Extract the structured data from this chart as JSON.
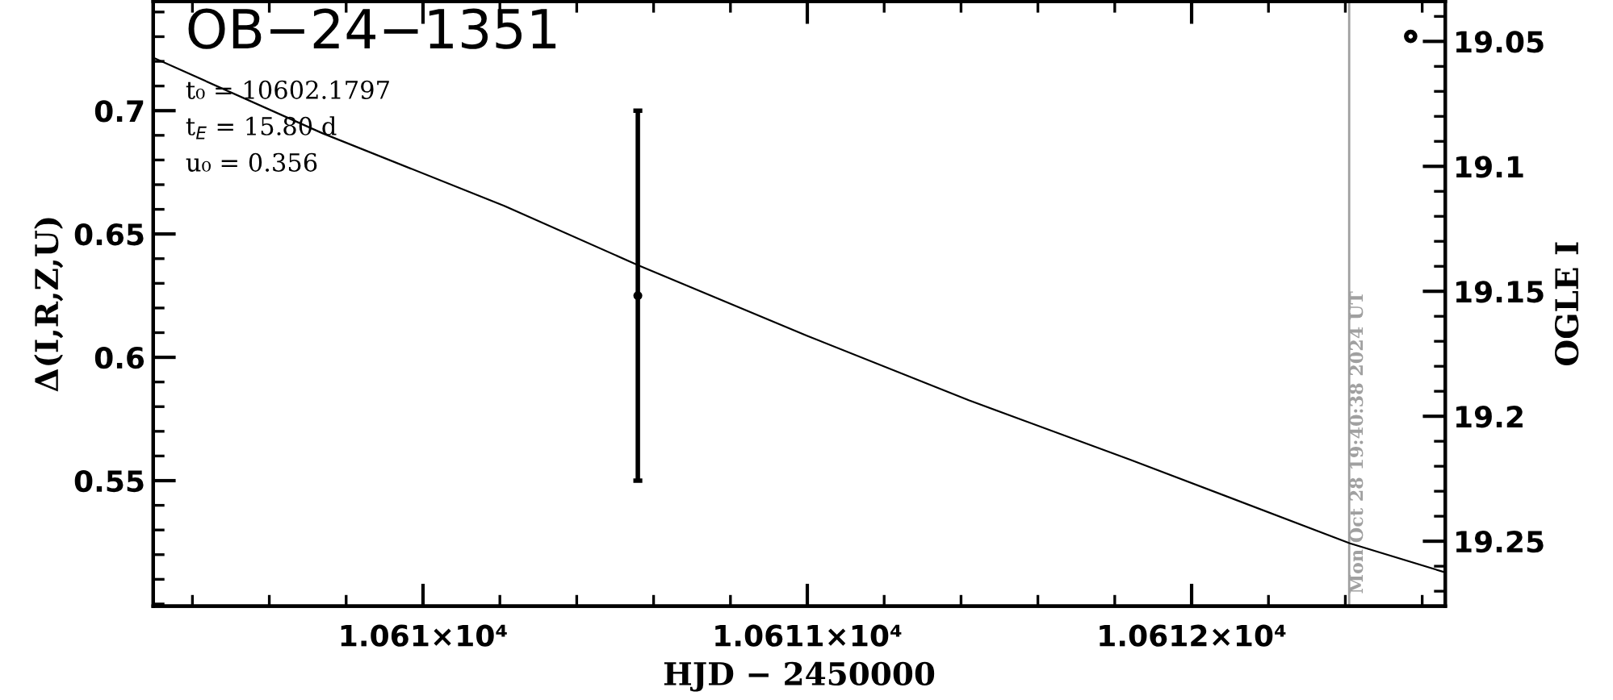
{
  "chart_data": {
    "type": "line",
    "title": "OB−24−1351",
    "annotations": [
      "t₀ = 10602.1797",
      "t$_{E}$ = 15.80 d",
      "u₀ = 0.356",
      "Mon Oct 28 19:40:38 2024 UT"
    ],
    "xlabel": "HJD − 2450000",
    "ylabel": "Δ(I,R,Z,U)",
    "y2label": "OGLE I",
    "series": [
      {
        "color": "#000000",
        "x": [
          10609.298,
          10609.739,
          10610.21,
          10610.559,
          10611.0,
          10611.42,
          10611.84,
          10612.412,
          10612.66
        ],
        "values": [
          0.7215,
          0.6908,
          0.6615,
          0.6374,
          0.6087,
          0.5826,
          0.5585,
          0.5246,
          0.5128
        ]
      },
      {
        "type": "scatter",
        "color": "#000000",
        "x": [
          10610.559
        ],
        "values": [
          0.625
        ],
        "errors": [
          0.075
        ],
        "marker": "circle"
      },
      {
        "type": "scatter",
        "color": "#000000",
        "axis": "y2",
        "x": [
          10612.57
        ],
        "values": [
          19.048
        ],
        "marker": "circle"
      }
    ],
    "xlim": [
      10609.298,
      10612.66
    ],
    "xticks": [
      {
        "value": 10610,
        "label": "1.061×10⁴"
      },
      {
        "value": 10611,
        "label": "1.0611×10⁴"
      },
      {
        "value": 10612,
        "label": "1.0612×10⁴"
      }
    ],
    "ylim": [
      0.4991,
      0.7443
    ],
    "yticks": [
      0.55,
      0.6,
      0.65,
      0.7
    ],
    "y2lim": [
      19.276,
      19.034
    ],
    "y2ticks": [
      19.05,
      19.1,
      19.15,
      19.2,
      19.25
    ],
    "ref_lines": [
      {
        "axis": "x",
        "value": 10612.41,
        "color": "#a0a0a0"
      }
    ],
    "grid": false,
    "legend": false
  }
}
